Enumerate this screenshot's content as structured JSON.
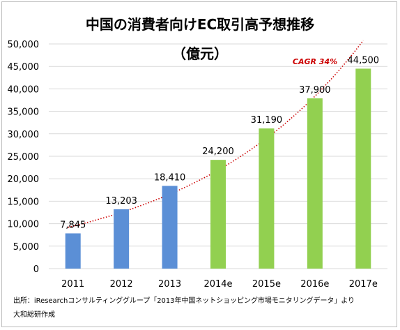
{
  "chart_data": {
    "type": "bar",
    "title": "中国の消費者向けEC取引高予想推移",
    "subtitle": "（億元）",
    "categories": [
      "2011",
      "2012",
      "2013",
      "2014e",
      "2015e",
      "2016e",
      "2017e"
    ],
    "values": [
      7845,
      13203,
      18410,
      24200,
      31190,
      37900,
      44500
    ],
    "data_labels": [
      "7,845",
      "13,203",
      "18,410",
      "24,200",
      "31,190",
      "37,900",
      "44,500"
    ],
    "kinds": [
      "actual",
      "actual",
      "actual",
      "forecast",
      "forecast",
      "forecast",
      "forecast"
    ],
    "colors": {
      "actual": "#5b8fd6",
      "forecast": "#92d050",
      "trend": "#cc0000"
    },
    "ylim": [
      0,
      50000
    ],
    "yticks": [
      "0",
      "5,000",
      "10,000",
      "15,000",
      "20,000",
      "25,000",
      "30,000",
      "35,000",
      "40,000",
      "45,000",
      "50,000"
    ],
    "grid": true,
    "trendline": {
      "type": "dotted",
      "label": "CAGR 34%"
    },
    "source_line1": "出所：iResearchコンサルティンググループ「2013年中国ネットショッピング市場モニタリングデータ」より",
    "source_line2": "大和総研作成"
  }
}
